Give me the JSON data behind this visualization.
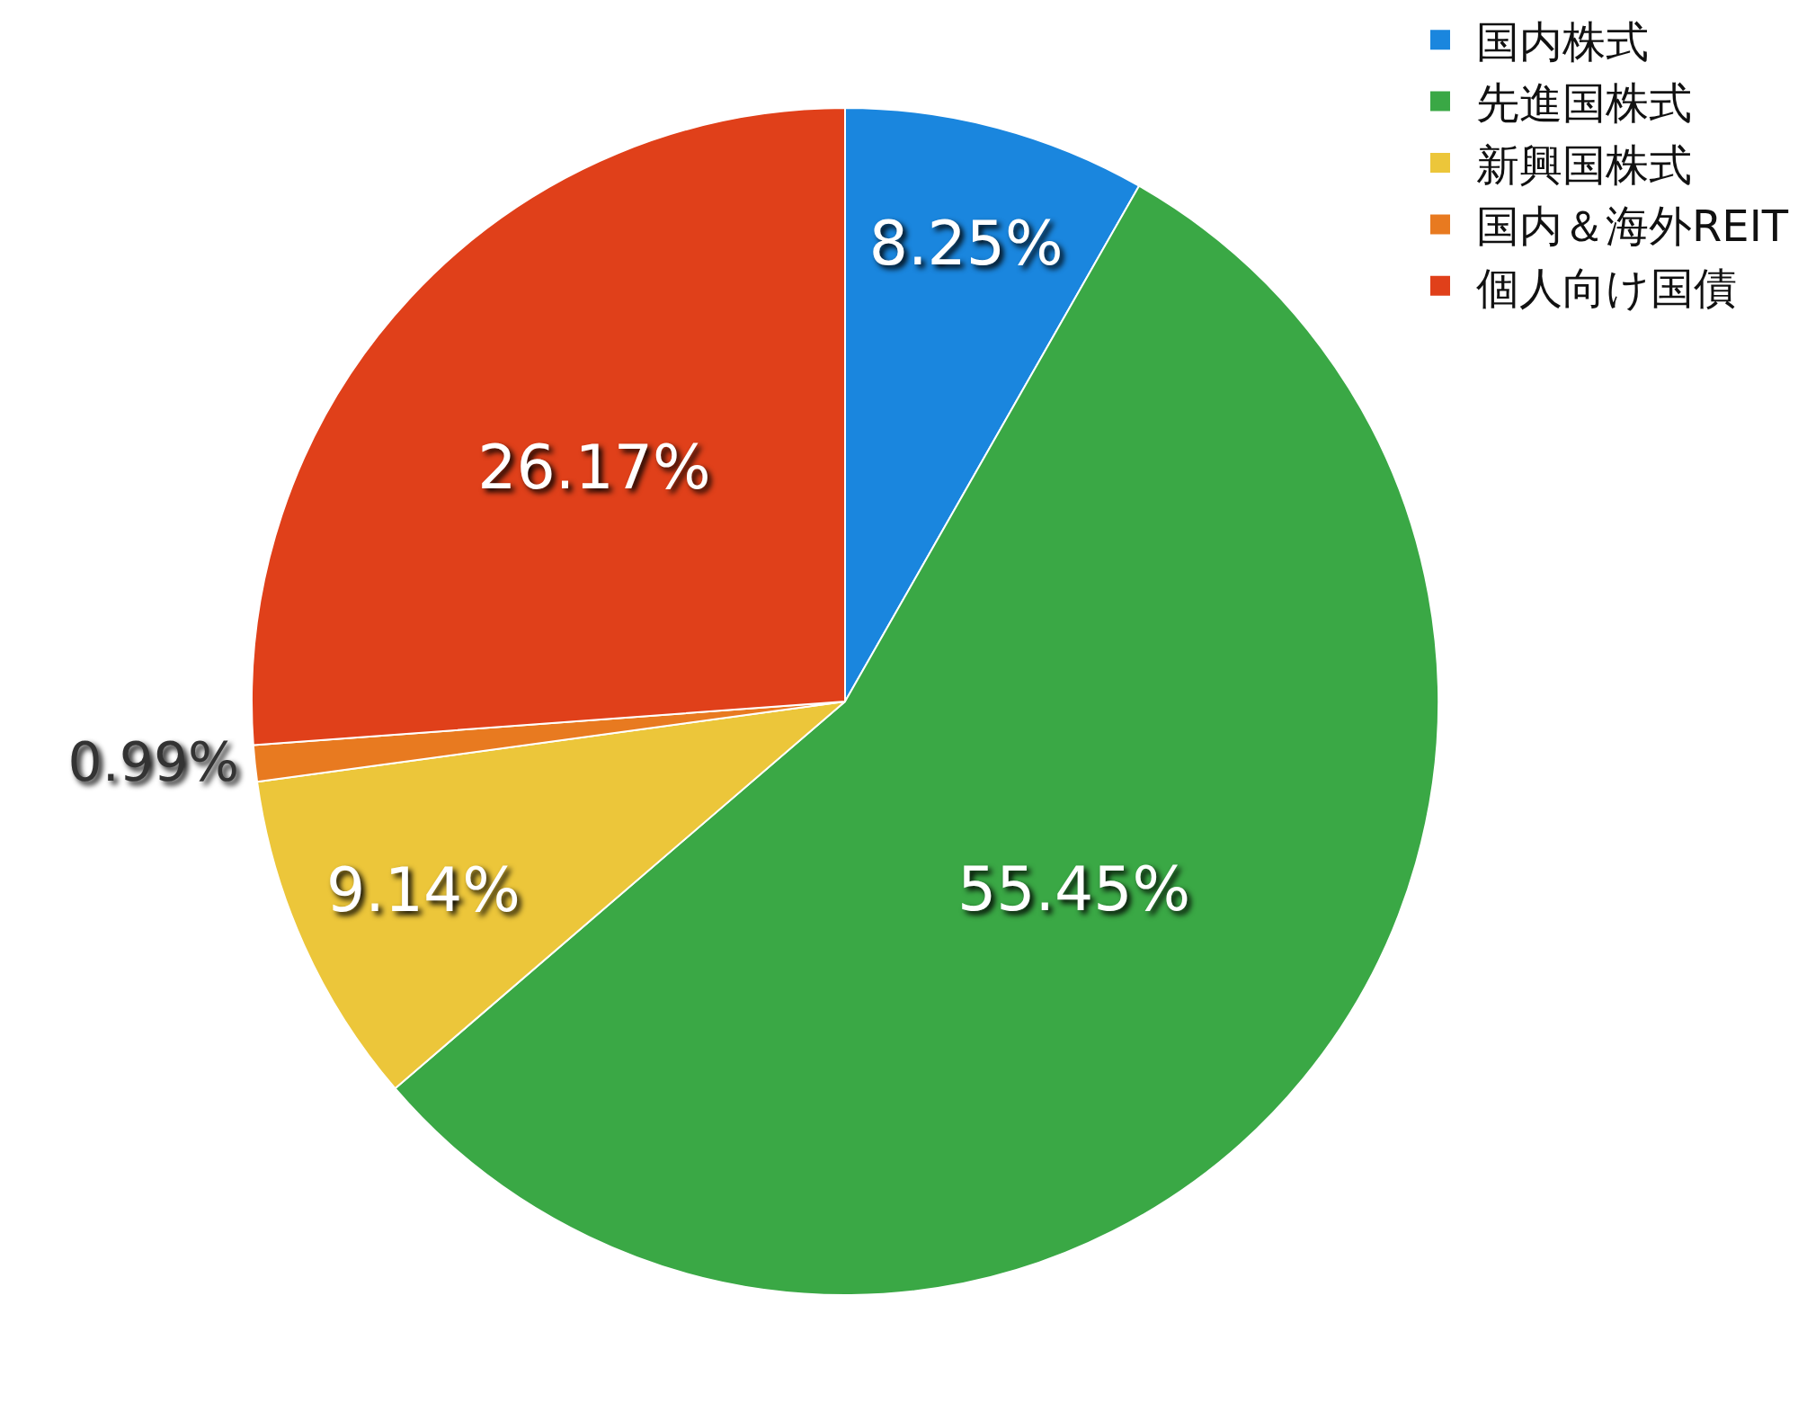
{
  "chart_data": {
    "type": "pie",
    "categories": [
      "国内株式",
      "先進国株式",
      "新興国株式",
      "国内＆海外REIT",
      "個人向け国債"
    ],
    "values": [
      8.25,
      55.45,
      9.14,
      0.99,
      26.17
    ],
    "colors": [
      "#1a86de",
      "#3aa845",
      "#ecc63a",
      "#e87a20",
      "#e0401a"
    ],
    "value_labels": [
      "8.25%",
      "55.45%",
      "9.14%",
      "0.99%",
      "26.17%"
    ],
    "legend": "top right"
  }
}
